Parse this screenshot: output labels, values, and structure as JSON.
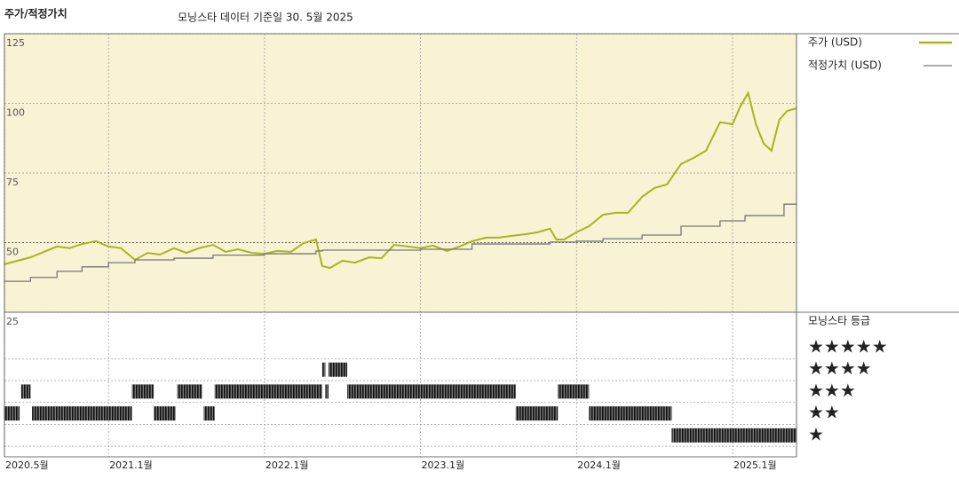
{
  "chart_data": [
    {
      "type": "line",
      "title": "주가/적정가치",
      "subtitle": "모닝스타 데이터 기준일 30. 5월 2025",
      "xlim": [
        2020.333,
        2025.41
      ],
      "ylim": [
        25,
        125
      ],
      "yticks": [
        25,
        50,
        75,
        100,
        125
      ],
      "background": "#f8f3d4",
      "grid": true,
      "series": [
        {
          "name": "주가 (USD)",
          "color": "#a9b51c",
          "x": [
            2020.33,
            2020.5,
            2020.6,
            2020.67,
            2020.75,
            2020.83,
            2020.92,
            2021.0,
            2021.08,
            2021.17,
            2021.25,
            2021.33,
            2021.42,
            2021.5,
            2021.58,
            2021.67,
            2021.75,
            2021.83,
            2021.92,
            2022.0,
            2022.08,
            2022.17,
            2022.25,
            2022.33,
            2022.37,
            2022.42,
            2022.5,
            2022.58,
            2022.67,
            2022.75,
            2022.83,
            2022.92,
            2023.0,
            2023.08,
            2023.17,
            2023.25,
            2023.33,
            2023.42,
            2023.5,
            2023.58,
            2023.67,
            2023.75,
            2023.83,
            2023.87,
            2023.92,
            2024.0,
            2024.08,
            2024.17,
            2024.25,
            2024.33,
            2024.42,
            2024.5,
            2024.58,
            2024.67,
            2024.75,
            2024.83,
            2024.92,
            2025.0,
            2025.05,
            2025.1,
            2025.15,
            2025.2,
            2025.25,
            2025.3,
            2025.35,
            2025.41
          ],
          "values": [
            42.2,
            44.7,
            47,
            48.6,
            48,
            49.5,
            50.5,
            48.6,
            48,
            43.8,
            46.3,
            45.7,
            48,
            46.3,
            48,
            49.2,
            46.7,
            47.6,
            46.3,
            46,
            47,
            46.7,
            49.8,
            51.1,
            41.6,
            40.9,
            43.5,
            42.8,
            44.7,
            44.4,
            49.2,
            48.6,
            48,
            48.9,
            47,
            48.6,
            50.5,
            51.8,
            51.8,
            52.4,
            53,
            53.7,
            55,
            51.1,
            51.1,
            53.7,
            55.9,
            60,
            60.7,
            60.7,
            66.4,
            69.6,
            70.9,
            78.2,
            80.4,
            83,
            93.2,
            92.5,
            98.9,
            103.7,
            92.5,
            85.5,
            83,
            94.1,
            97.3,
            98.2
          ]
        },
        {
          "name": "적정가치 (USD)",
          "color": "#777777",
          "step": "after",
          "x": [
            2020.33,
            2020.5,
            2020.67,
            2020.83,
            2021.0,
            2021.17,
            2021.42,
            2021.67,
            2022.0,
            2022.33,
            2022.37,
            2023.0,
            2023.33,
            2023.83,
            2024.0,
            2024.17,
            2024.42,
            2024.67,
            2024.92,
            2025.08,
            2025.33,
            2025.41
          ],
          "values": [
            36.1,
            37.5,
            39.7,
            41.3,
            42.8,
            43.8,
            44.4,
            45.5,
            46,
            47,
            47.3,
            47.6,
            49.5,
            50.2,
            50.5,
            51.4,
            52.7,
            55.9,
            57.8,
            59.7,
            63.8,
            63.8
          ]
        }
      ]
    },
    {
      "type": "rating",
      "title": "모닝스타 등급",
      "xlim": [
        2020.333,
        2025.41
      ],
      "xticks": [
        {
          "value": 2020.333,
          "label": "2020.5월"
        },
        {
          "value": 2021,
          "label": "2021.1월"
        },
        {
          "value": 2022,
          "label": "2022.1월"
        },
        {
          "value": 2023,
          "label": "2023.1월"
        },
        {
          "value": 2024,
          "label": "2024.1월"
        },
        {
          "value": 2025,
          "label": "2025.1월"
        }
      ],
      "levels": [
        5,
        4,
        3,
        2,
        1
      ],
      "level_labels": [
        "★★★★★",
        "★★★★",
        "★★★",
        "★★",
        "★"
      ],
      "start": [
        2020.33,
        2020.44,
        2020.51,
        2021.15,
        2021.29,
        2021.44,
        2021.61,
        2021.68,
        2022.37,
        2022.39,
        2022.41,
        2022.53,
        2023.61,
        2023.88,
        2024.08,
        2024.61
      ],
      "end": [
        2020.43,
        2020.5,
        2021.15,
        2021.29,
        2021.43,
        2021.6,
        2021.68,
        2022.37,
        2022.39,
        2022.41,
        2022.53,
        2023.61,
        2023.88,
        2024.08,
        2024.61,
        2025.41
      ],
      "stars": [
        2,
        3,
        2,
        3,
        2,
        3,
        2,
        3,
        4,
        3,
        4,
        3,
        2,
        3,
        2,
        1
      ]
    }
  ]
}
